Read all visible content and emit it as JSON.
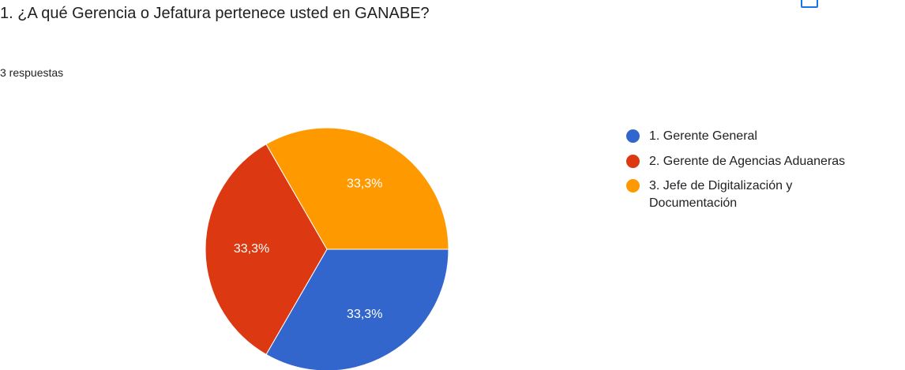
{
  "chart_data": {
    "type": "pie",
    "title": "1. ¿A qué Gerencia o Jefatura pertenece usted en GANABE?",
    "subtitle": "3 respuestas",
    "categories": [
      "1. Gerente General",
      "2. Gerente de Agencias Aduaneras",
      "3. Jefe de Digitalización y Documentación"
    ],
    "values": [
      33.3,
      33.3,
      33.3
    ],
    "value_labels": [
      "33,3%",
      "33,3%",
      "33,3%"
    ],
    "colors": [
      "#3366cc",
      "#dc3912",
      "#ff9900"
    ],
    "legend": "right"
  }
}
